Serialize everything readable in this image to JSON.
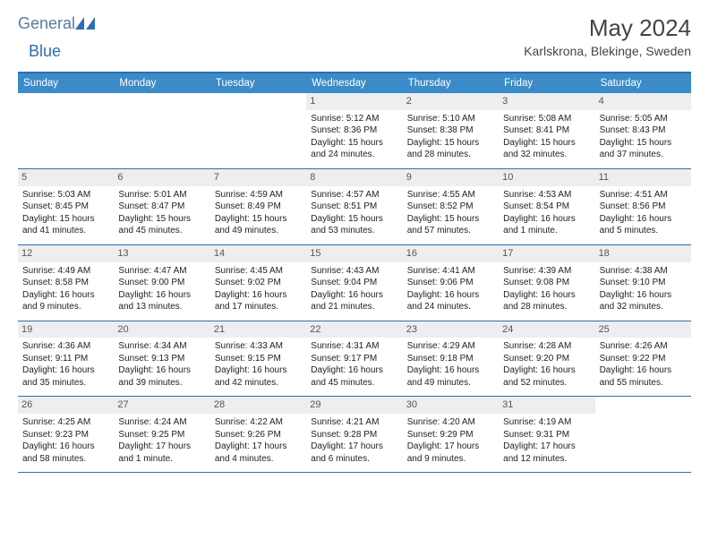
{
  "brand": {
    "part1": "General",
    "part2": "Blue"
  },
  "title": "May 2024",
  "location": "Karlskrona, Blekinge, Sweden",
  "weekdays": [
    "Sunday",
    "Monday",
    "Tuesday",
    "Wednesday",
    "Thursday",
    "Friday",
    "Saturday"
  ],
  "colors": {
    "header_bg": "#3b8bc9",
    "header_border": "#2d6fb0",
    "daynum_bg": "#eceef0",
    "text": "#222222",
    "title": "#444444"
  },
  "typography": {
    "title_fontsize": 26,
    "location_fontsize": 14,
    "weekday_fontsize": 11.5,
    "cell_fontsize": 10,
    "daynum_fontsize": 11
  },
  "grid": {
    "cols": 7,
    "rows": 5,
    "leading_blanks": 3,
    "trailing_blanks": 1
  },
  "days": [
    {
      "n": "1",
      "sunrise": "5:12 AM",
      "sunset": "8:36 PM",
      "daylight": "15 hours and 24 minutes."
    },
    {
      "n": "2",
      "sunrise": "5:10 AM",
      "sunset": "8:38 PM",
      "daylight": "15 hours and 28 minutes."
    },
    {
      "n": "3",
      "sunrise": "5:08 AM",
      "sunset": "8:41 PM",
      "daylight": "15 hours and 32 minutes."
    },
    {
      "n": "4",
      "sunrise": "5:05 AM",
      "sunset": "8:43 PM",
      "daylight": "15 hours and 37 minutes."
    },
    {
      "n": "5",
      "sunrise": "5:03 AM",
      "sunset": "8:45 PM",
      "daylight": "15 hours and 41 minutes."
    },
    {
      "n": "6",
      "sunrise": "5:01 AM",
      "sunset": "8:47 PM",
      "daylight": "15 hours and 45 minutes."
    },
    {
      "n": "7",
      "sunrise": "4:59 AM",
      "sunset": "8:49 PM",
      "daylight": "15 hours and 49 minutes."
    },
    {
      "n": "8",
      "sunrise": "4:57 AM",
      "sunset": "8:51 PM",
      "daylight": "15 hours and 53 minutes."
    },
    {
      "n": "9",
      "sunrise": "4:55 AM",
      "sunset": "8:52 PM",
      "daylight": "15 hours and 57 minutes."
    },
    {
      "n": "10",
      "sunrise": "4:53 AM",
      "sunset": "8:54 PM",
      "daylight": "16 hours and 1 minute."
    },
    {
      "n": "11",
      "sunrise": "4:51 AM",
      "sunset": "8:56 PM",
      "daylight": "16 hours and 5 minutes."
    },
    {
      "n": "12",
      "sunrise": "4:49 AM",
      "sunset": "8:58 PM",
      "daylight": "16 hours and 9 minutes."
    },
    {
      "n": "13",
      "sunrise": "4:47 AM",
      "sunset": "9:00 PM",
      "daylight": "16 hours and 13 minutes."
    },
    {
      "n": "14",
      "sunrise": "4:45 AM",
      "sunset": "9:02 PM",
      "daylight": "16 hours and 17 minutes."
    },
    {
      "n": "15",
      "sunrise": "4:43 AM",
      "sunset": "9:04 PM",
      "daylight": "16 hours and 21 minutes."
    },
    {
      "n": "16",
      "sunrise": "4:41 AM",
      "sunset": "9:06 PM",
      "daylight": "16 hours and 24 minutes."
    },
    {
      "n": "17",
      "sunrise": "4:39 AM",
      "sunset": "9:08 PM",
      "daylight": "16 hours and 28 minutes."
    },
    {
      "n": "18",
      "sunrise": "4:38 AM",
      "sunset": "9:10 PM",
      "daylight": "16 hours and 32 minutes."
    },
    {
      "n": "19",
      "sunrise": "4:36 AM",
      "sunset": "9:11 PM",
      "daylight": "16 hours and 35 minutes."
    },
    {
      "n": "20",
      "sunrise": "4:34 AM",
      "sunset": "9:13 PM",
      "daylight": "16 hours and 39 minutes."
    },
    {
      "n": "21",
      "sunrise": "4:33 AM",
      "sunset": "9:15 PM",
      "daylight": "16 hours and 42 minutes."
    },
    {
      "n": "22",
      "sunrise": "4:31 AM",
      "sunset": "9:17 PM",
      "daylight": "16 hours and 45 minutes."
    },
    {
      "n": "23",
      "sunrise": "4:29 AM",
      "sunset": "9:18 PM",
      "daylight": "16 hours and 49 minutes."
    },
    {
      "n": "24",
      "sunrise": "4:28 AM",
      "sunset": "9:20 PM",
      "daylight": "16 hours and 52 minutes."
    },
    {
      "n": "25",
      "sunrise": "4:26 AM",
      "sunset": "9:22 PM",
      "daylight": "16 hours and 55 minutes."
    },
    {
      "n": "26",
      "sunrise": "4:25 AM",
      "sunset": "9:23 PM",
      "daylight": "16 hours and 58 minutes."
    },
    {
      "n": "27",
      "sunrise": "4:24 AM",
      "sunset": "9:25 PM",
      "daylight": "17 hours and 1 minute."
    },
    {
      "n": "28",
      "sunrise": "4:22 AM",
      "sunset": "9:26 PM",
      "daylight": "17 hours and 4 minutes."
    },
    {
      "n": "29",
      "sunrise": "4:21 AM",
      "sunset": "9:28 PM",
      "daylight": "17 hours and 6 minutes."
    },
    {
      "n": "30",
      "sunrise": "4:20 AM",
      "sunset": "9:29 PM",
      "daylight": "17 hours and 9 minutes."
    },
    {
      "n": "31",
      "sunrise": "4:19 AM",
      "sunset": "9:31 PM",
      "daylight": "17 hours and 12 minutes."
    }
  ],
  "labels": {
    "sunrise": "Sunrise:",
    "sunset": "Sunset:",
    "daylight": "Daylight:"
  }
}
